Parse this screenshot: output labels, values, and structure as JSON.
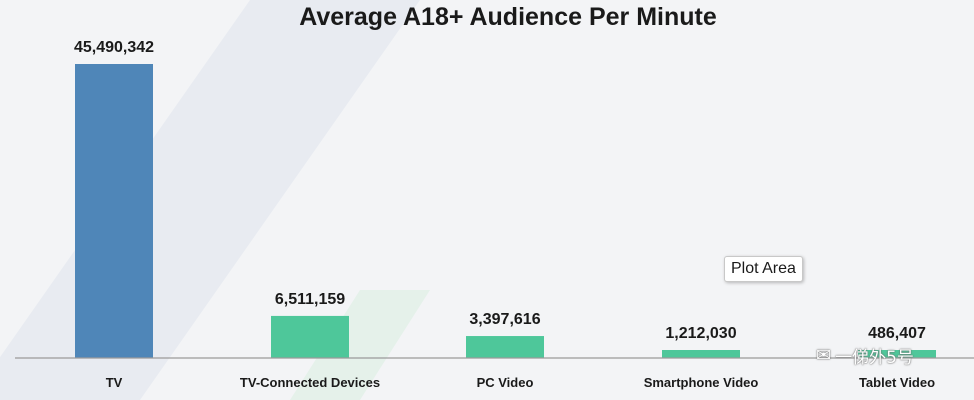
{
  "chart_data": {
    "type": "bar",
    "title": "Average A18+ Audience Per Minute",
    "categories": [
      "TV",
      "TV-Connected Devices",
      "PC Video",
      "Smartphone Video",
      "Tablet Video"
    ],
    "values": [
      45490342,
      6511159,
      3397616,
      1212030,
      486407
    ],
    "value_labels": [
      "45,490,342",
      "6,511,159",
      "3,397,616",
      "1,212,030",
      "486,407"
    ],
    "colors": [
      "#4f86b8",
      "#4ec79a",
      "#4ec79a",
      "#4ec79a",
      "#4ec79a"
    ],
    "xlabel": "",
    "ylabel": "",
    "ylim": [
      0,
      45490342
    ],
    "grid": false,
    "legend": "none"
  },
  "tooltip": {
    "text": "Plot Area"
  },
  "watermark": {
    "text": "一俤外5号",
    "icon": "wechat-icon"
  }
}
